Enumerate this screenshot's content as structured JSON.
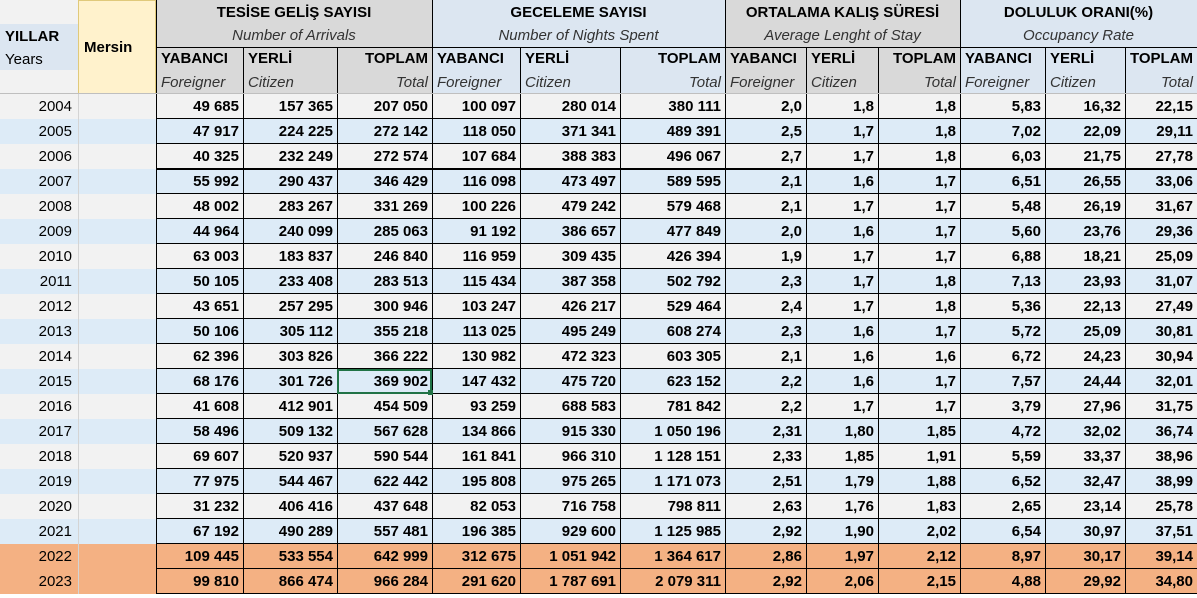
{
  "header": {
    "years_tr": "YILLAR",
    "years_en": "Years",
    "city": "Mersin",
    "groups": [
      {
        "tr": "TESİSE GELİŞ SAYISI",
        "en": "Number of Arrivals"
      },
      {
        "tr": "GECELEME SAYISI",
        "en": "Number of Nights Spent"
      },
      {
        "tr": "ORTALAMA KALIŞ SÜRESİ",
        "en": "Average Lenght of Stay"
      },
      {
        "tr": "DOLULUK ORANI(%)",
        "en": "Occupancy Rate"
      }
    ],
    "subcols": [
      {
        "tr": "YABANCI",
        "en": "Foreigner"
      },
      {
        "tr": "YERLİ",
        "en": "Citizen"
      },
      {
        "tr": "TOPLAM",
        "en": "Total"
      },
      {
        "tr": "YABANCI",
        "en": "Foreigner"
      },
      {
        "tr": "YERLİ",
        "en": "Citizen"
      },
      {
        "tr": "TOPLAM",
        "en": "Total"
      },
      {
        "tr": "YABANCI",
        "en": "Foreigner"
      },
      {
        "tr": "YERLİ",
        "en": "Citizen"
      },
      {
        "tr": "TOPLAM",
        "en": "Total"
      },
      {
        "tr": "YABANCI",
        "en": "Foreigner"
      },
      {
        "tr": "YERLİ",
        "en": "Citizen"
      },
      {
        "tr": "TOPLAM",
        "en": "Total"
      }
    ]
  },
  "colors": {
    "header_grey": "#d9d9d9",
    "header_blue": "#dce6f1",
    "mersin_yellow": "#fff2cc",
    "row_light": "#f2f2f2",
    "row_blue": "#ddebf7",
    "row_highlight": "#f4b183",
    "selection_green": "#217346"
  },
  "selected_cell": {
    "row": 11,
    "col": 2
  },
  "rows": [
    {
      "year": "2004",
      "values": [
        "49 685",
        "157 365",
        "207 050",
        "100 097",
        "280 014",
        "380 111",
        "2,0",
        "1,8",
        "1,8",
        "5,83",
        "16,32",
        "22,15"
      ]
    },
    {
      "year": "2005",
      "values": [
        "47 917",
        "224 225",
        "272 142",
        "118 050",
        "371 341",
        "489 391",
        "2,5",
        "1,7",
        "1,8",
        "7,02",
        "22,09",
        "29,11"
      ]
    },
    {
      "year": "2006",
      "values": [
        "40 325",
        "232 249",
        "272 574",
        "107 684",
        "388 383",
        "496 067",
        "2,7",
        "1,7",
        "1,8",
        "6,03",
        "21,75",
        "27,78"
      ]
    },
    {
      "year": "2007",
      "values": [
        "55 992",
        "290 437",
        "346 429",
        "116 098",
        "473 497",
        "589 595",
        "2,1",
        "1,6",
        "1,7",
        "6,51",
        "26,55",
        "33,06"
      ]
    },
    {
      "year": "2008",
      "values": [
        "48 002",
        "283 267",
        "331 269",
        "100 226",
        "479 242",
        "579 468",
        "2,1",
        "1,7",
        "1,7",
        "5,48",
        "26,19",
        "31,67"
      ]
    },
    {
      "year": "2009",
      "values": [
        "44 964",
        "240 099",
        "285 063",
        "91 192",
        "386 657",
        "477 849",
        "2,0",
        "1,6",
        "1,7",
        "5,60",
        "23,76",
        "29,36"
      ]
    },
    {
      "year": "2010",
      "values": [
        "63 003",
        "183 837",
        "246 840",
        "116 959",
        "309 435",
        "426 394",
        "1,9",
        "1,7",
        "1,7",
        "6,88",
        "18,21",
        "25,09"
      ]
    },
    {
      "year": "2011",
      "values": [
        "50 105",
        "233 408",
        "283 513",
        "115 434",
        "387 358",
        "502 792",
        "2,3",
        "1,7",
        "1,8",
        "7,13",
        "23,93",
        "31,07"
      ]
    },
    {
      "year": "2012",
      "values": [
        "43 651",
        "257 295",
        "300 946",
        "103 247",
        "426 217",
        "529 464",
        "2,4",
        "1,7",
        "1,8",
        "5,36",
        "22,13",
        "27,49"
      ]
    },
    {
      "year": "2013",
      "values": [
        "50 106",
        "305 112",
        "355 218",
        "113 025",
        "495 249",
        "608 274",
        "2,3",
        "1,6",
        "1,7",
        "5,72",
        "25,09",
        "30,81"
      ]
    },
    {
      "year": "2014",
      "values": [
        "62 396",
        "303 826",
        "366 222",
        "130 982",
        "472 323",
        "603 305",
        "2,1",
        "1,6",
        "1,6",
        "6,72",
        "24,23",
        "30,94"
      ]
    },
    {
      "year": "2015",
      "values": [
        "68 176",
        "301 726",
        "369 902",
        "147 432",
        "475 720",
        "623 152",
        "2,2",
        "1,6",
        "1,7",
        "7,57",
        "24,44",
        "32,01"
      ]
    },
    {
      "year": "2016",
      "values": [
        "41 608",
        "412 901",
        "454 509",
        "93 259",
        "688 583",
        "781 842",
        "2,2",
        "1,7",
        "1,7",
        "3,79",
        "27,96",
        "31,75"
      ]
    },
    {
      "year": "2017",
      "values": [
        "58 496",
        "509 132",
        "567 628",
        "134 866",
        "915 330",
        "1 050 196",
        "2,31",
        "1,80",
        "1,85",
        "4,72",
        "32,02",
        "36,74"
      ]
    },
    {
      "year": "2018",
      "values": [
        "69 607",
        "520 937",
        "590 544",
        "161 841",
        "966 310",
        "1 128 151",
        "2,33",
        "1,85",
        "1,91",
        "5,59",
        "33,37",
        "38,96"
      ]
    },
    {
      "year": "2019",
      "values": [
        "77 975",
        "544 467",
        "622 442",
        "195 808",
        "975 265",
        "1 171 073",
        "2,51",
        "1,79",
        "1,88",
        "6,52",
        "32,47",
        "38,99"
      ]
    },
    {
      "year": "2020",
      "values": [
        "31 232",
        "406 416",
        "437 648",
        "82 053",
        "716 758",
        "798 811",
        "2,63",
        "1,76",
        "1,83",
        "2,65",
        "23,14",
        "25,78"
      ]
    },
    {
      "year": "2021",
      "values": [
        "67 192",
        "490 289",
        "557 481",
        "196 385",
        "929 600",
        "1 125 985",
        "2,92",
        "1,90",
        "2,02",
        "6,54",
        "30,97",
        "37,51"
      ]
    },
    {
      "year": "2022",
      "values": [
        "109 445",
        "533 554",
        "642 999",
        "312 675",
        "1 051 942",
        "1 364 617",
        "2,86",
        "1,97",
        "2,12",
        "8,97",
        "30,17",
        "39,14"
      ],
      "highlight": true
    },
    {
      "year": "2023",
      "values": [
        "99 810",
        "866 474",
        "966 284",
        "291 620",
        "1 787 691",
        "2 079 311",
        "2,92",
        "2,06",
        "2,15",
        "4,88",
        "29,92",
        "34,80"
      ],
      "highlight": true
    }
  ]
}
